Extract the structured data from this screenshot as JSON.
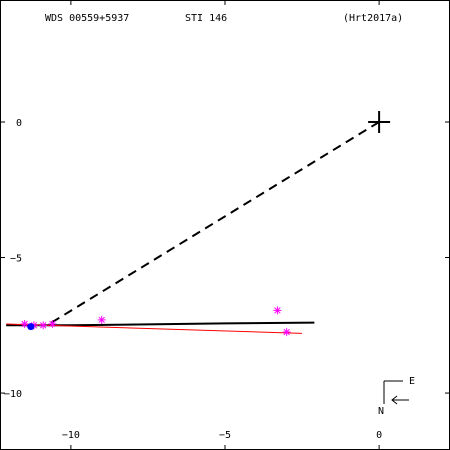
{
  "chart_data": {
    "type": "scatter",
    "header": {
      "left": "WDS 00559+5937",
      "center": "STI 146",
      "right": "(Hrt2017a)"
    },
    "xlabel": "",
    "ylabel": "",
    "xlim": [
      -12.3,
      2.3
    ],
    "ylim": [
      -12.1,
      4.5
    ],
    "x_ticks": [
      {
        "value": -10,
        "label": "−10"
      },
      {
        "value": -5,
        "label": "−5"
      },
      {
        "value": 0,
        "label": "0"
      }
    ],
    "y_ticks": [
      {
        "value": 0,
        "label": "0"
      },
      {
        "value": -5,
        "label": "−5"
      },
      {
        "value": -10,
        "label": "−10"
      }
    ],
    "grid": false,
    "primary": {
      "x": 0,
      "y": 0
    },
    "dashed_line": {
      "from": [
        0,
        0
      ],
      "to": [
        -10.7,
        -7.45
      ]
    },
    "orbit_line": [
      [
        -12.1,
        -7.5
      ],
      [
        -10.0,
        -7.5
      ],
      [
        -5.0,
        -7.43
      ],
      [
        -2.1,
        -7.4
      ]
    ],
    "red_line": [
      [
        -12.1,
        -7.45
      ],
      [
        -2.5,
        -7.8
      ]
    ],
    "observations": [
      {
        "x": -11.5,
        "y": -7.45
      },
      {
        "x": -11.2,
        "y": -7.5
      },
      {
        "x": -10.9,
        "y": -7.5
      },
      {
        "x": -10.6,
        "y": -7.45
      },
      {
        "x": -9.0,
        "y": -7.3
      },
      {
        "x": -3.3,
        "y": -6.95
      },
      {
        "x": -3.0,
        "y": -7.75
      }
    ],
    "current_position": {
      "x": -11.3,
      "y": -7.55
    },
    "compass": {
      "east": "E",
      "north": "N"
    },
    "colors": {
      "axis": "#000000",
      "dashed": "#000000",
      "orbit": "#000000",
      "residual": "#ff0000",
      "observation": "#ff00ff",
      "current": "#0000ff"
    }
  }
}
